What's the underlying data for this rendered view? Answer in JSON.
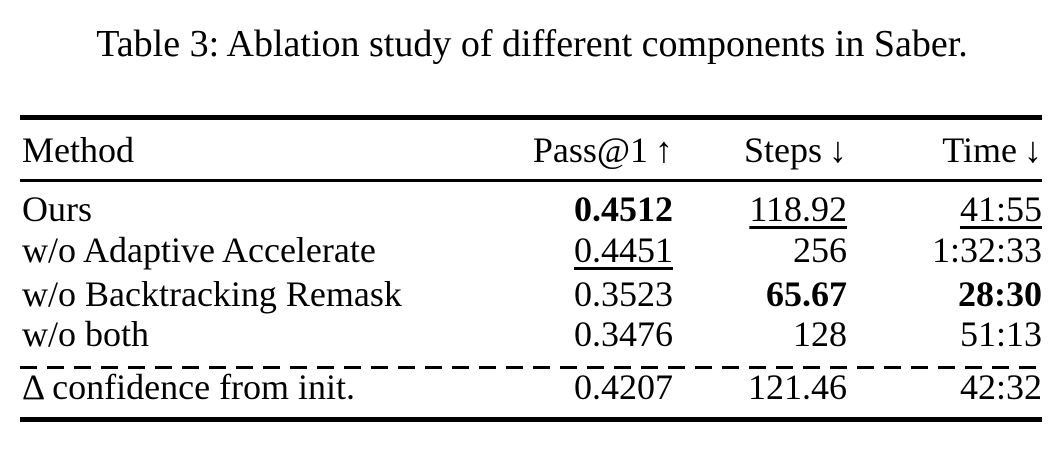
{
  "caption": "Table 3: Ablation study of different components in Saber.",
  "table": {
    "columns": [
      {
        "id": "method",
        "label": "Method",
        "arrow": ""
      },
      {
        "id": "pass1",
        "label": "Pass@1",
        "arrow": "↑"
      },
      {
        "id": "steps",
        "label": "Steps",
        "arrow": "↓"
      },
      {
        "id": "time",
        "label": "Time",
        "arrow": "↓"
      }
    ],
    "rows": [
      {
        "method": "Ours",
        "pass1": "0.4512",
        "pass1_style": "bold",
        "steps": "118.92",
        "steps_style": "underline",
        "time": "41:55",
        "time_style": "underline"
      },
      {
        "method": "w/o Adaptive Accelerate",
        "pass1": "0.4451",
        "pass1_style": "underline",
        "steps": "256",
        "steps_style": "plain",
        "time": "1:32:33",
        "time_style": "plain"
      },
      {
        "method": "w/o Backtracking Remask",
        "pass1": "0.3523",
        "pass1_style": "plain",
        "steps": "65.67",
        "steps_style": "bold",
        "time": "28:30",
        "time_style": "bold"
      },
      {
        "method": "w/o both",
        "pass1": "0.3476",
        "pass1_style": "plain",
        "steps": "128",
        "steps_style": "plain",
        "time": "51:13",
        "time_style": "plain"
      }
    ],
    "delta_row": {
      "method": "Δ confidence from init.",
      "pass1": "0.4207",
      "pass1_style": "plain",
      "steps": "121.46",
      "steps_style": "plain",
      "time": "42:32",
      "time_style": "plain"
    }
  },
  "colors": {
    "text": "#000000",
    "background": "#ffffff",
    "rule": "#000000"
  }
}
